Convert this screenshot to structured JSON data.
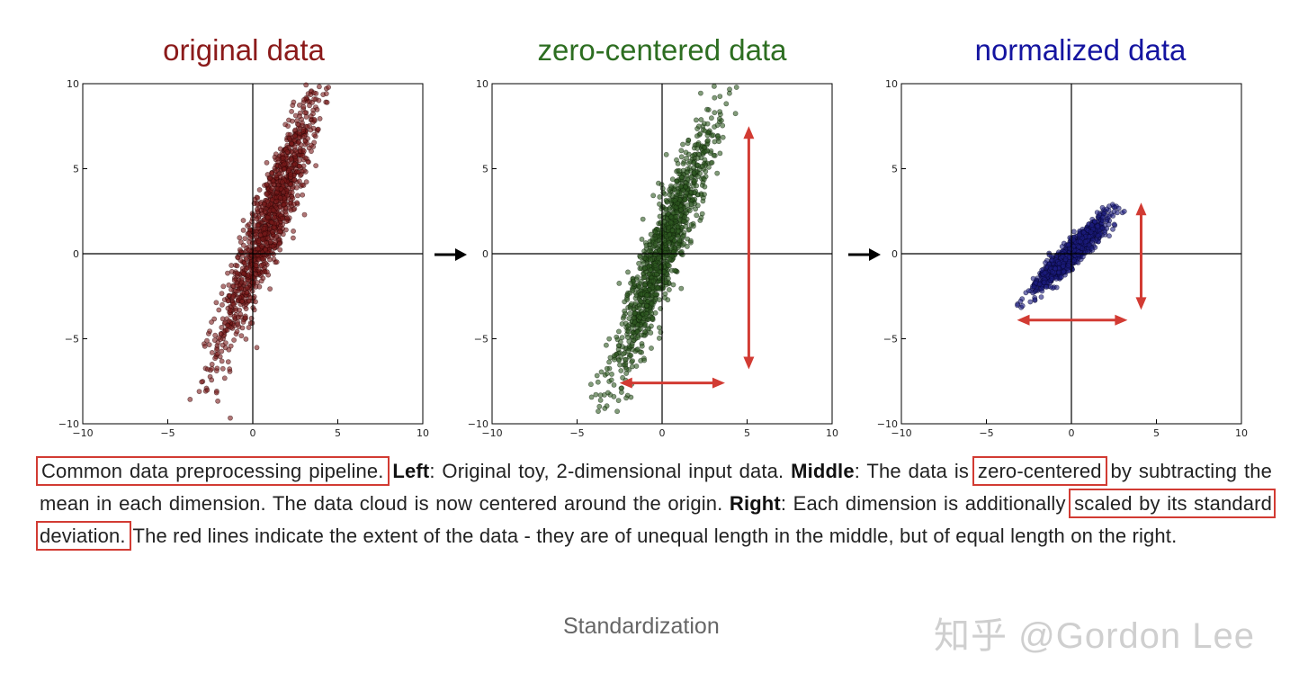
{
  "panels": [
    {
      "title": "original data",
      "title_color": "#8b1a1a",
      "dot_color": "#7a1b1b",
      "dot_stroke": "#2a0505"
    },
    {
      "title": "zero-centered data",
      "title_color": "#2d6e21",
      "dot_color": "#2f5a22",
      "dot_stroke": "#0d1f08"
    },
    {
      "title": "normalized data",
      "title_color": "#1414a0",
      "dot_color": "#1c1c80",
      "dot_stroke": "#05052a"
    }
  ],
  "extent_arrow_color": "#d23b33",
  "caption": {
    "p1": "Common data preprocessing pipeline.",
    "p2": " ",
    "left_label": "Left",
    "p3": ": Original toy, 2-dimensional input data. ",
    "middle_label": "Middle",
    "p4": ": The data is ",
    "p5": "zero-centered",
    "p6": " by subtracting the mean in each dimension. The data cloud is now centered around the origin. ",
    "right_label": "Right",
    "p7": ": Each dimension is additionally ",
    "p8": "scaled by its standard deviation.",
    "p9": " The red lines indicate the extent of the data - they are of unequal length in the middle, but of equal length on the right."
  },
  "footer_label": "Standardization",
  "watermark": "知乎 @Gordon Lee",
  "chart_data": [
    {
      "type": "scatter",
      "title": "original data",
      "xlim": [
        -10,
        10
      ],
      "ylim": [
        -10,
        10
      ],
      "xticks": [
        -10,
        -5,
        0,
        5,
        10
      ],
      "yticks": [
        -10,
        -5,
        0,
        5,
        10
      ],
      "point_cloud": {
        "mean": [
          1.0,
          2.0
        ],
        "std": [
          1.5,
          3.8
        ],
        "correlation": 0.92,
        "n": 1200
      }
    },
    {
      "type": "scatter",
      "title": "zero-centered data",
      "xlim": [
        -10,
        10
      ],
      "ylim": [
        -10,
        10
      ],
      "xticks": [
        -10,
        -5,
        0,
        5,
        10
      ],
      "yticks": [
        -10,
        -5,
        0,
        5,
        10
      ],
      "point_cloud": {
        "mean": [
          0,
          0
        ],
        "std": [
          1.5,
          3.8
        ],
        "correlation": 0.92,
        "n": 1200
      },
      "extent_arrows": {
        "x": [
          -2.5,
          3.7
        ],
        "y": [
          -6.8,
          7.5
        ],
        "x_arrow_at_y": -7.6,
        "y_arrow_at_x": 5.1
      }
    },
    {
      "type": "scatter",
      "title": "normalized data",
      "xlim": [
        -10,
        10
      ],
      "ylim": [
        -10,
        10
      ],
      "xticks": [
        -10,
        -5,
        0,
        5,
        10
      ],
      "yticks": [
        -10,
        -5,
        0,
        5,
        10
      ],
      "point_cloud": {
        "mean": [
          0,
          0
        ],
        "std": [
          1.0,
          1.0
        ],
        "correlation": 0.92,
        "n": 1200
      },
      "extent_arrows": {
        "x": [
          -3.2,
          3.3
        ],
        "y": [
          -3.3,
          3.0
        ],
        "x_arrow_at_y": -3.9,
        "y_arrow_at_x": 4.1
      }
    }
  ]
}
